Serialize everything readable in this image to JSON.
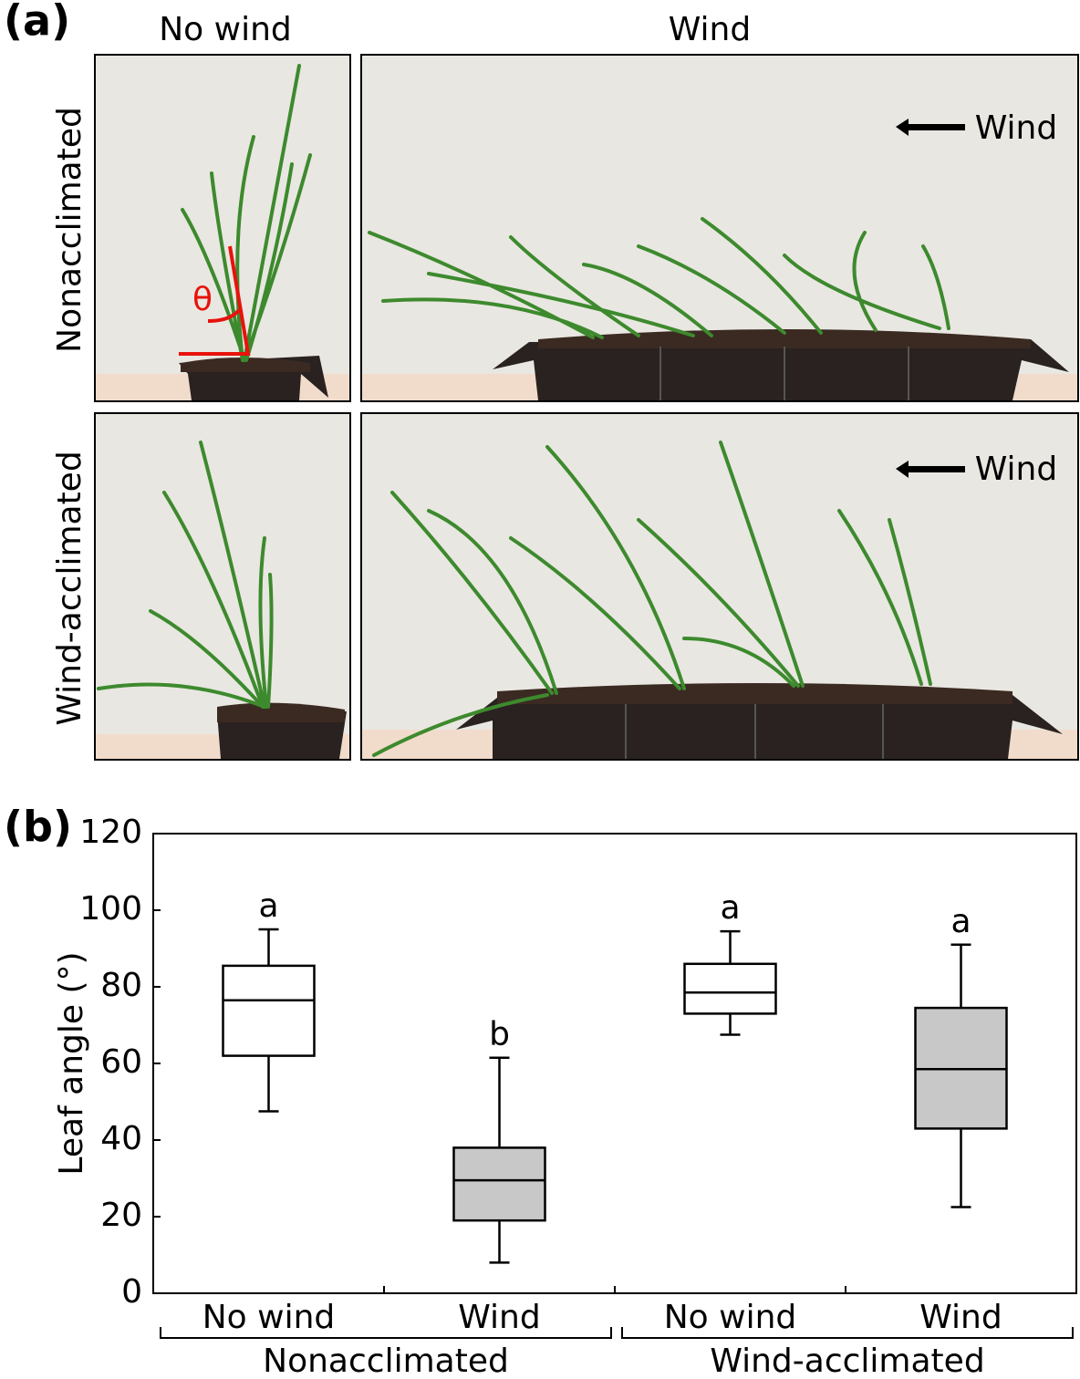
{
  "panel_a": {
    "label": "(a)",
    "columns": [
      "No wind",
      "Wind"
    ],
    "rows": [
      "Nonacclimated",
      "Wind-acclimated"
    ],
    "wind_arrows": [
      "Wind",
      "Wind"
    ],
    "angle_symbol": "θ"
  },
  "chart_data": {
    "type": "box",
    "panel_label": "(b)",
    "ylabel": "Leaf angle (°)",
    "categories": [
      "No wind",
      "Wind",
      "No wind",
      "Wind"
    ],
    "groups": [
      "Nonacclimated",
      "Wind-acclimated"
    ],
    "boxes": [
      {
        "whislo": 47.5,
        "q1": 62,
        "med": 76.5,
        "q3": 85.5,
        "whishi": 95,
        "color": "#ffffff"
      },
      {
        "whislo": 8,
        "q1": 19,
        "med": 29.5,
        "q3": 38,
        "whishi": 61.5,
        "color": "#c8c8c8"
      },
      {
        "whislo": 67.5,
        "q1": 73,
        "med": 78.5,
        "q3": 86,
        "whishi": 94.5,
        "color": "#ffffff"
      },
      {
        "whislo": 22.5,
        "q1": 43,
        "med": 58.5,
        "q3": 74.5,
        "whishi": 91,
        "color": "#c8c8c8"
      }
    ],
    "annotations": [
      "a",
      "b",
      "a",
      "a"
    ],
    "ylim": [
      0,
      120
    ],
    "yticks": [
      0,
      20,
      40,
      60,
      80,
      100,
      120
    ],
    "grid": false
  }
}
